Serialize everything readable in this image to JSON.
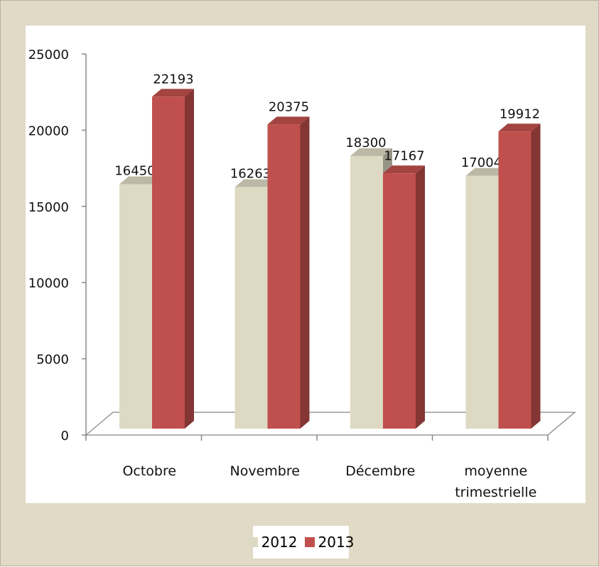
{
  "chart_data": {
    "type": "bar3d",
    "categories": [
      "Octobre",
      "Novembre",
      "Décembre",
      "moyenne trimestrielle"
    ],
    "series": [
      {
        "name": "2012",
        "color": "#ddd9c3",
        "values": [
          16450,
          16263,
          18300,
          17004
        ]
      },
      {
        "name": "2013",
        "color": "#c0504d",
        "values": [
          22193,
          20375,
          17167,
          19912
        ]
      }
    ],
    "ylim": [
      0,
      25000
    ],
    "yticks": [
      0,
      5000,
      10000,
      15000,
      20000,
      25000
    ]
  }
}
